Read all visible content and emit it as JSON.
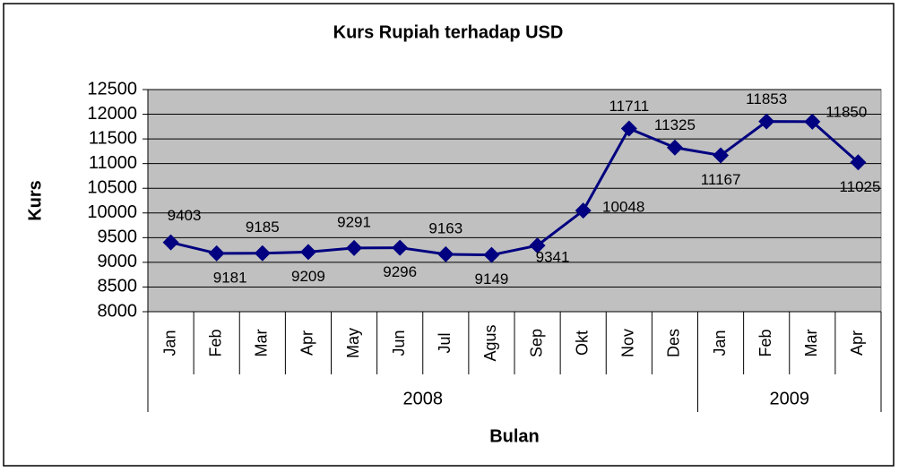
{
  "chart_data": {
    "type": "line",
    "title": "Kurs Rupiah terhadap USD",
    "x_label": "Bulan",
    "y_label": "Kurs",
    "categories": [
      "Jan",
      "Feb",
      "Mar",
      "Apr",
      "May",
      "Jun",
      "Jul",
      "Agus",
      "Sep",
      "Okt",
      "Nov",
      "Des",
      "Jan",
      "Feb",
      "Mar",
      "Apr"
    ],
    "groups": [
      {
        "label": "2008",
        "count": 12
      },
      {
        "label": "2009",
        "count": 4
      }
    ],
    "series": [
      {
        "name": "Kurs",
        "color": "#000080",
        "values": [
          9403,
          9181,
          9185,
          9209,
          9291,
          9296,
          9163,
          9149,
          9341,
          10048,
          11711,
          11325,
          11167,
          11853,
          11850,
          11025
        ]
      }
    ],
    "ylim": [
      8000,
      12500
    ],
    "yticks": [
      8000,
      8500,
      9000,
      9500,
      10000,
      10500,
      11000,
      11500,
      12000,
      12500
    ],
    "grid": true,
    "plot_background": "#c0c0c0"
  }
}
